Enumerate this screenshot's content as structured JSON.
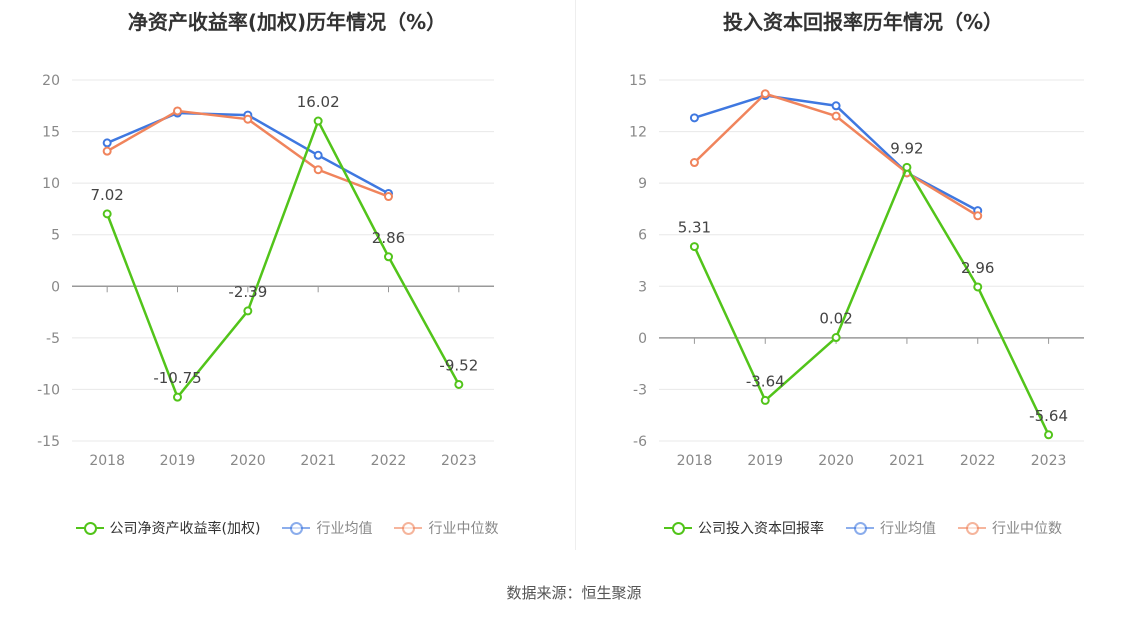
{
  "chart_data": [
    {
      "type": "line",
      "title": "净资产收益率(加权)历年情况（%）",
      "categories": [
        "2018",
        "2019",
        "2020",
        "2021",
        "2022",
        "2023"
      ],
      "ylim": [
        -15,
        20
      ],
      "yticks": [
        -15,
        -10,
        -5,
        0,
        5,
        10,
        15,
        20
      ],
      "series": [
        {
          "name": "公司净资产收益率(加权)",
          "color": "#52c41a",
          "values": [
            7.02,
            -10.75,
            -2.39,
            16.02,
            2.86,
            -9.52
          ],
          "show_labels": true
        },
        {
          "name": "行业均值",
          "color": "#3f78e0",
          "values": [
            13.9,
            16.8,
            16.6,
            12.7,
            9.0,
            null
          ],
          "show_labels": false
        },
        {
          "name": "行业中位数",
          "color": "#f0845c",
          "values": [
            13.1,
            17.0,
            16.2,
            11.3,
            8.7,
            null
          ],
          "show_labels": false
        }
      ],
      "legend": "bottom",
      "grid": true
    },
    {
      "type": "line",
      "title": "投入资本回报率历年情况（%）",
      "categories": [
        "2018",
        "2019",
        "2020",
        "2021",
        "2022",
        "2023"
      ],
      "ylim": [
        -6,
        15
      ],
      "yticks": [
        -6,
        -3,
        0,
        3,
        6,
        9,
        12,
        15
      ],
      "series": [
        {
          "name": "公司投入资本回报率",
          "color": "#52c41a",
          "values": [
            5.31,
            -3.64,
            0.02,
            9.92,
            2.96,
            -5.64
          ],
          "show_labels": true
        },
        {
          "name": "行业均值",
          "color": "#3f78e0",
          "values": [
            12.8,
            14.1,
            13.5,
            9.6,
            7.4,
            null
          ],
          "show_labels": false
        },
        {
          "name": "行业中位数",
          "color": "#f0845c",
          "values": [
            10.2,
            14.2,
            12.9,
            9.6,
            7.1,
            null
          ],
          "show_labels": false
        }
      ],
      "legend": "bottom",
      "grid": true
    }
  ],
  "source": "数据来源：恒生聚源"
}
